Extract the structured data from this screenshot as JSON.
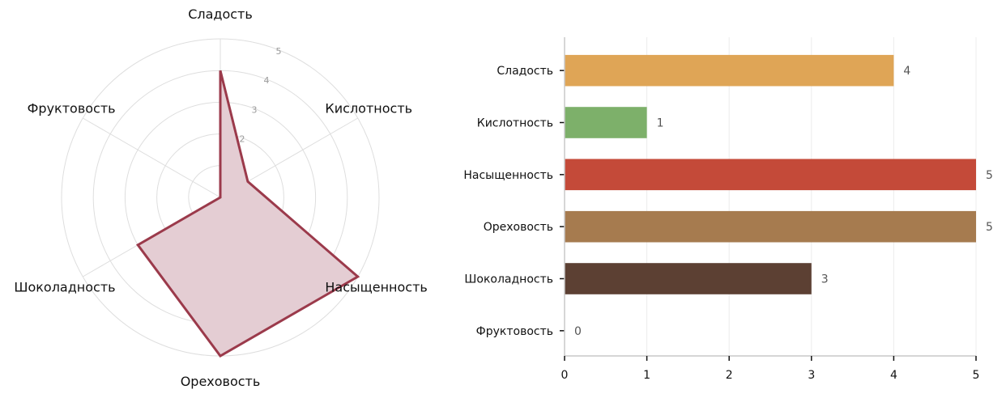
{
  "chart_data": [
    {
      "type": "radar",
      "axes": [
        "Сладость",
        "Кислотность",
        "Насыщенность",
        "Ореховость",
        "Шоколадность",
        "Фруктовость"
      ],
      "values": [
        4,
        1,
        5,
        5,
        3,
        0
      ],
      "rlim": [
        0,
        5
      ],
      "rticks": [
        "1",
        "2",
        "3",
        "4",
        "5"
      ],
      "line_color": "#9b3a4b",
      "fill_color": "#e4cdd3",
      "grid": true
    },
    {
      "type": "bar",
      "orientation": "horizontal",
      "categories": [
        "Сладость",
        "Кислотность",
        "Насыщенность",
        "Ореховость",
        "Шоколадность",
        "Фруктовость"
      ],
      "values": [
        4,
        1,
        5,
        5,
        3,
        0
      ],
      "value_labels": [
        "4",
        "1",
        "5",
        "5",
        "3",
        "0"
      ],
      "colors": [
        "#dfa556",
        "#7db06a",
        "#c44a39",
        "#a67b4f",
        "#5c4033",
        "#c2185b"
      ],
      "xlim": [
        0,
        5
      ],
      "xticks": [
        "0",
        "1",
        "2",
        "3",
        "4",
        "5"
      ],
      "grid": true
    }
  ]
}
